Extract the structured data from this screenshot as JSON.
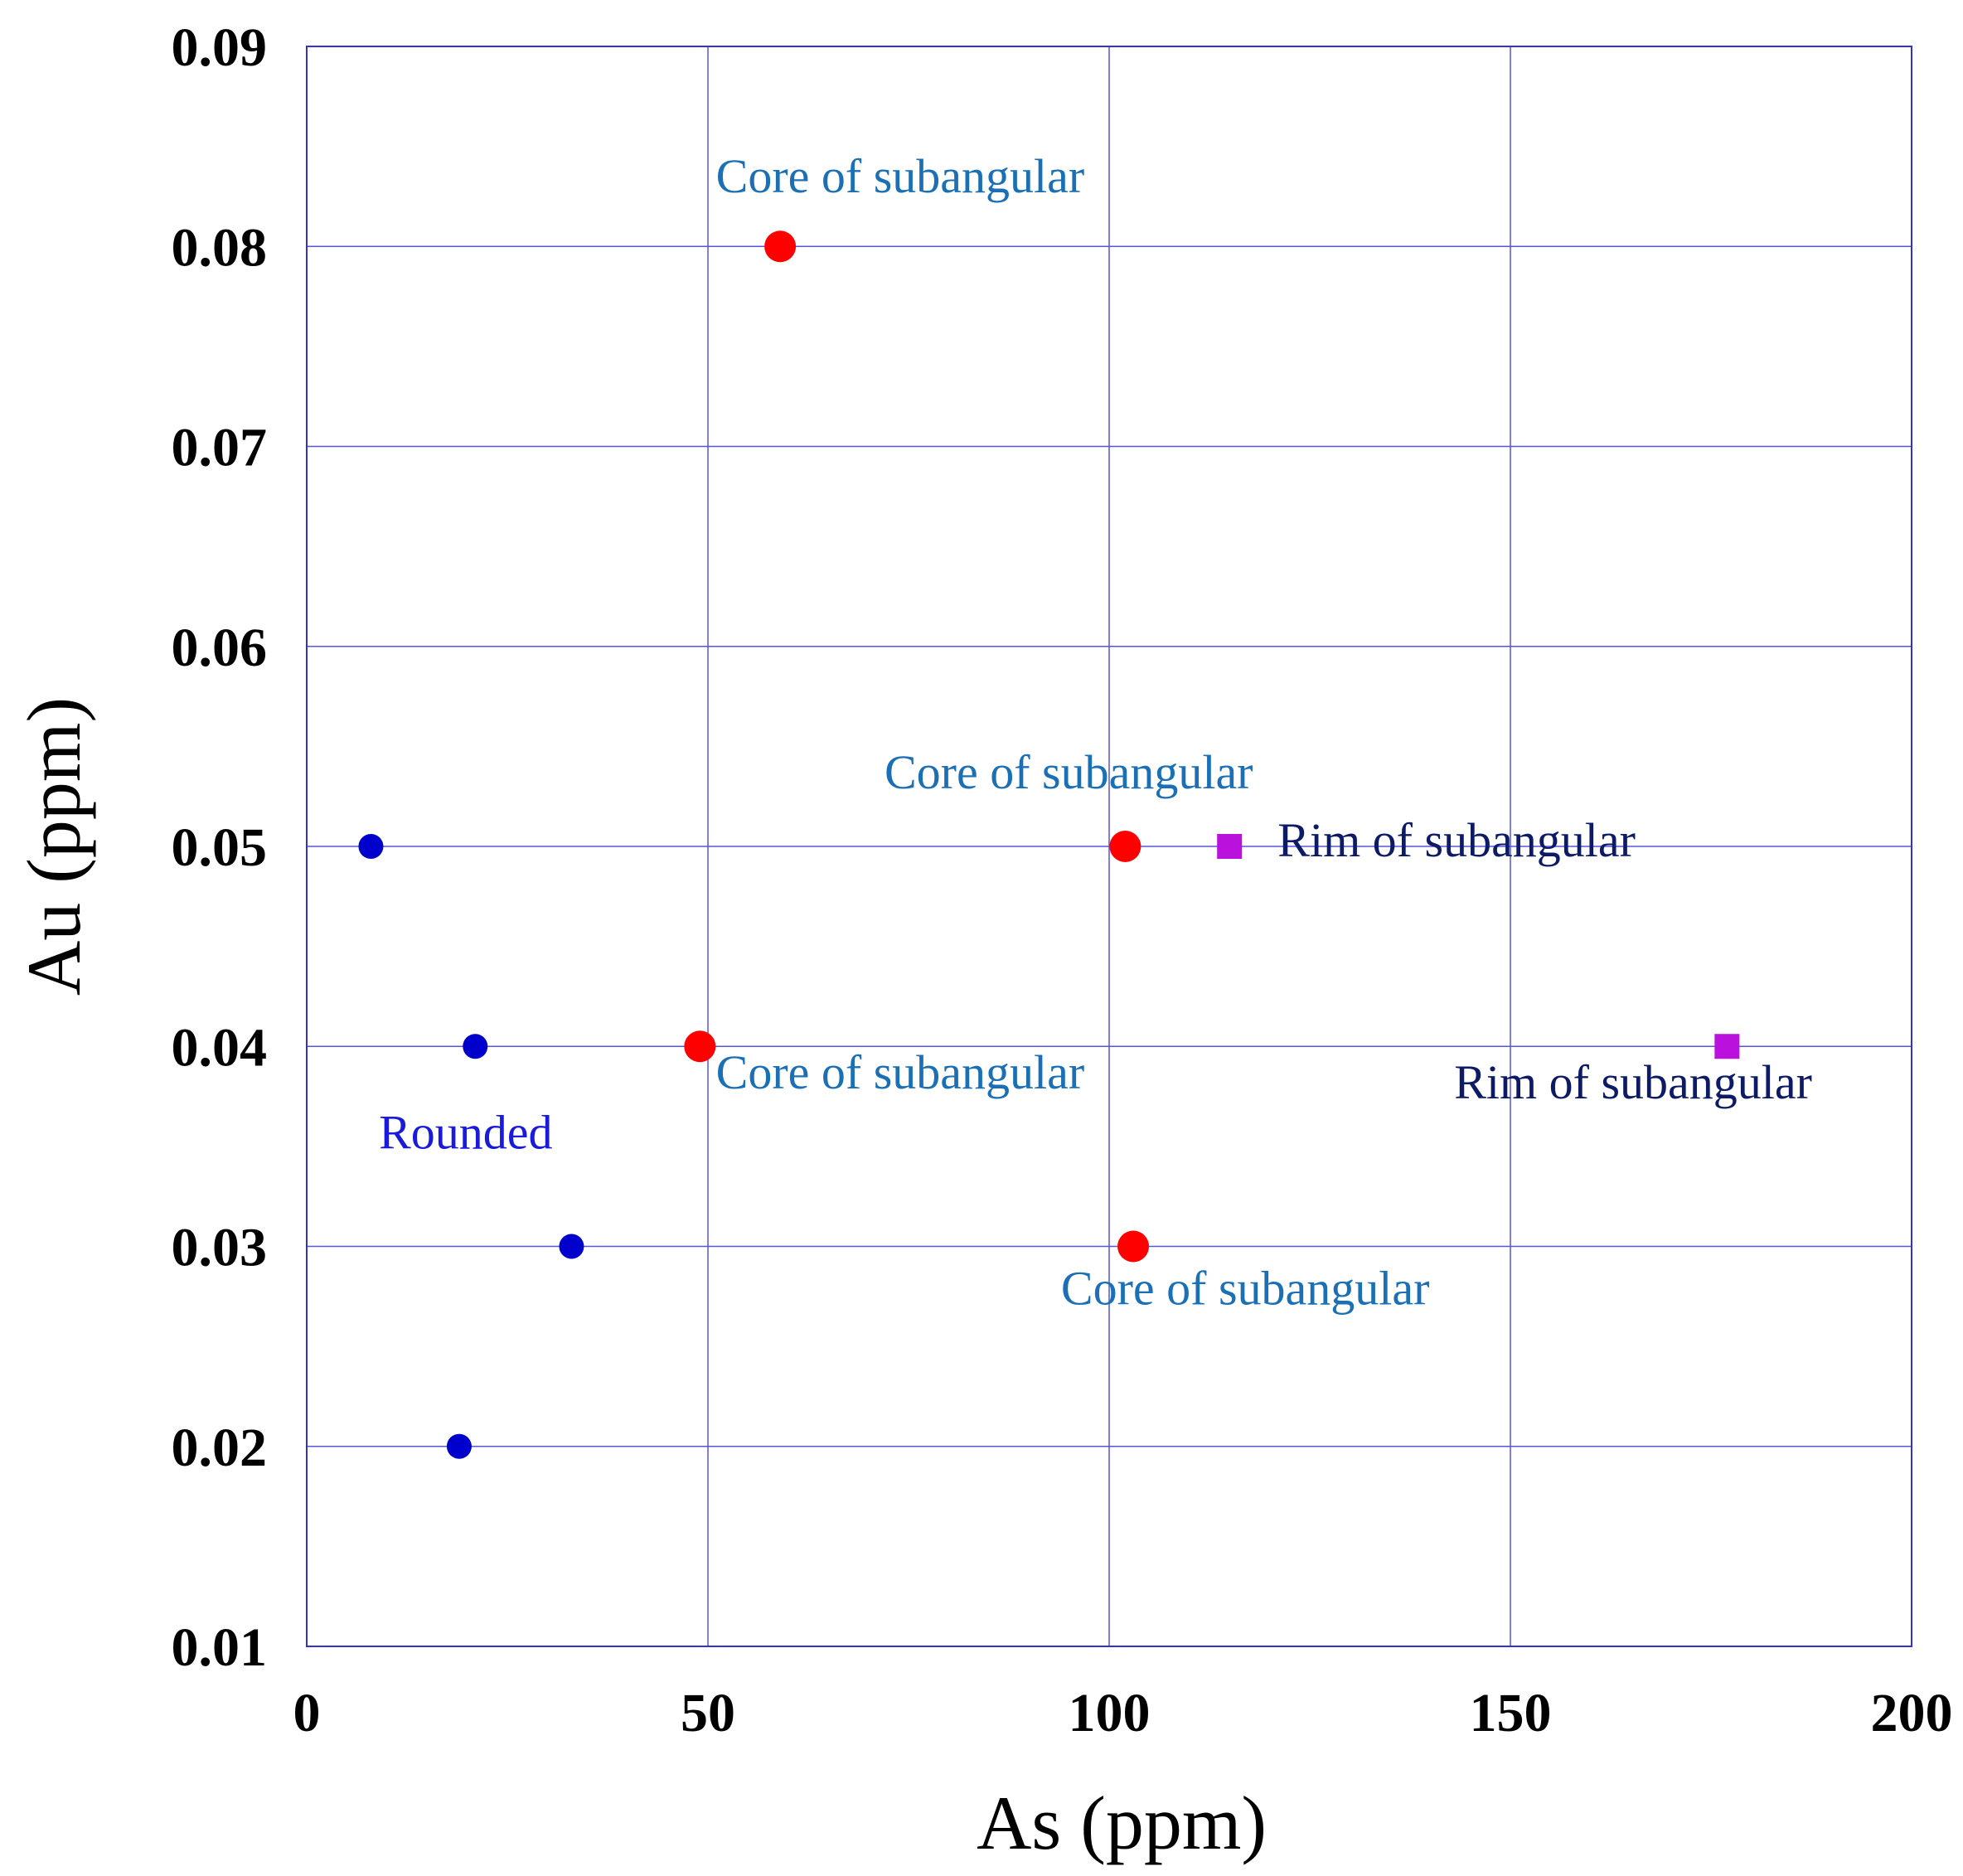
{
  "chart_data": {
    "type": "scatter",
    "title": "",
    "xlabel": "As (ppm)",
    "ylabel": "Au (ppm)",
    "xlim": [
      0,
      200
    ],
    "ylim": [
      0.01,
      0.09
    ],
    "x_ticks": [
      "0",
      "50",
      "100",
      "150",
      "200"
    ],
    "y_ticks": [
      "0.01",
      "0.02",
      "0.03",
      "0.04",
      "0.05",
      "0.06",
      "0.07",
      "0.08",
      "0.09"
    ],
    "grid": true,
    "colors": {
      "frame": "#3333cc",
      "grid": "#5555dd"
    },
    "series": [
      {
        "marker": "circle",
        "size": "small",
        "color": "#0000cc",
        "points": [
          [
            8,
            0.05
          ],
          [
            21,
            0.04
          ],
          [
            33,
            0.03
          ],
          [
            19,
            0.02
          ]
        ]
      },
      {
        "marker": "circle",
        "size": "large",
        "color": "#ff0000",
        "points": [
          [
            59,
            0.08
          ],
          [
            102,
            0.05
          ],
          [
            49,
            0.04
          ],
          [
            103,
            0.03
          ]
        ]
      },
      {
        "marker": "square",
        "size": "small",
        "color": "#bb11dd",
        "points": [
          [
            115,
            0.05
          ],
          [
            177,
            0.04
          ]
        ]
      }
    ],
    "annotations": [
      {
        "text": "Core of subangular",
        "x": 51,
        "y": 0.0827,
        "color": "#1a6fb5"
      },
      {
        "text": "Core of subangular",
        "x": 72,
        "y": 0.0529,
        "color": "#1a6fb5"
      },
      {
        "text": "Rim of subangular",
        "x": 121,
        "y": 0.0495,
        "color": "#0d1a66"
      },
      {
        "text": "Core of subangular",
        "x": 51,
        "y": 0.0379,
        "color": "#1a6fb5"
      },
      {
        "text": "Rim of subangular",
        "x": 143,
        "y": 0.0374,
        "color": "#0d1a66"
      },
      {
        "text": "Rounded",
        "x": 9,
        "y": 0.0349,
        "color": "#1a1add"
      },
      {
        "text": "Core of subangular",
        "x": 94,
        "y": 0.0271,
        "color": "#1a6fb5"
      }
    ]
  }
}
